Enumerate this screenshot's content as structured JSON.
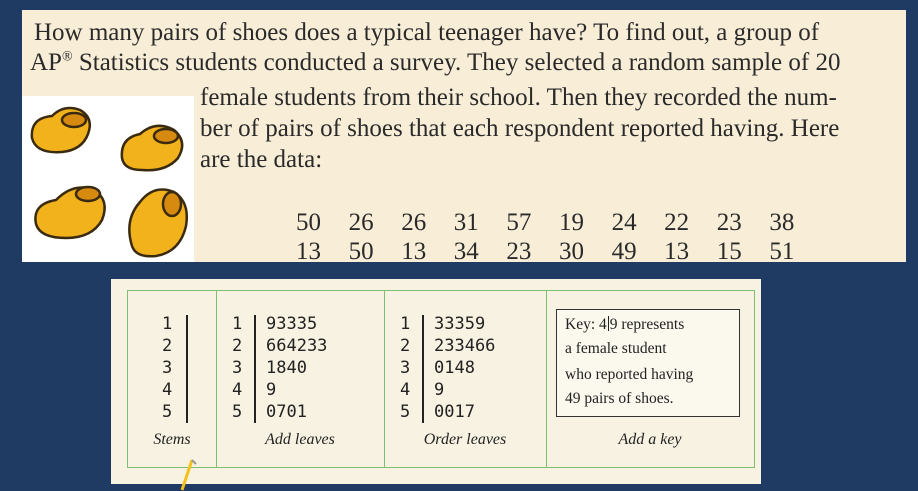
{
  "paragraph": {
    "line1": "How many pairs of shoes does a typical teenager have? To find out, a group of",
    "line2_sup": "®",
    "line2_pre": "AP",
    "line2_post": " Statistics students conducted a survey. They selected a random sample of 20",
    "line3": "female students from their school. Then they recorded the num-",
    "line4": "ber of pairs of shoes that each respondent reported having. Here",
    "line5": "are the data:"
  },
  "data_values": {
    "row1": [
      "50",
      "26",
      "26",
      "31",
      "57",
      "19",
      "24",
      "22",
      "23",
      "38"
    ],
    "row2": [
      "13",
      "50",
      "13",
      "34",
      "23",
      "30",
      "49",
      "13",
      "15",
      "51"
    ]
  },
  "stemplot": {
    "stems": [
      "1",
      "2",
      "3",
      "4",
      "5"
    ],
    "add_leaves": [
      "93335",
      "664233",
      "1840",
      "9",
      "0701"
    ],
    "order_leaves": [
      "33359",
      "233466",
      "0148",
      "9",
      "0017"
    ],
    "captions": {
      "stems": "Stems",
      "add_leaves": "Add leaves",
      "order_leaves": "Order leaves",
      "add_key": "Add a key"
    },
    "key": {
      "line1_pre": "Key: 4",
      "line1_post": "9 represents",
      "line2": "a female student",
      "line3": "who reported having",
      "line4": "49 pairs of shoes."
    }
  },
  "colors": {
    "background": "#1f3a63",
    "panel": "#f8eed8",
    "table_border": "#7fbf72",
    "shoe_fill": "#f1b21c"
  },
  "icons": [
    "shoe-illustration"
  ]
}
